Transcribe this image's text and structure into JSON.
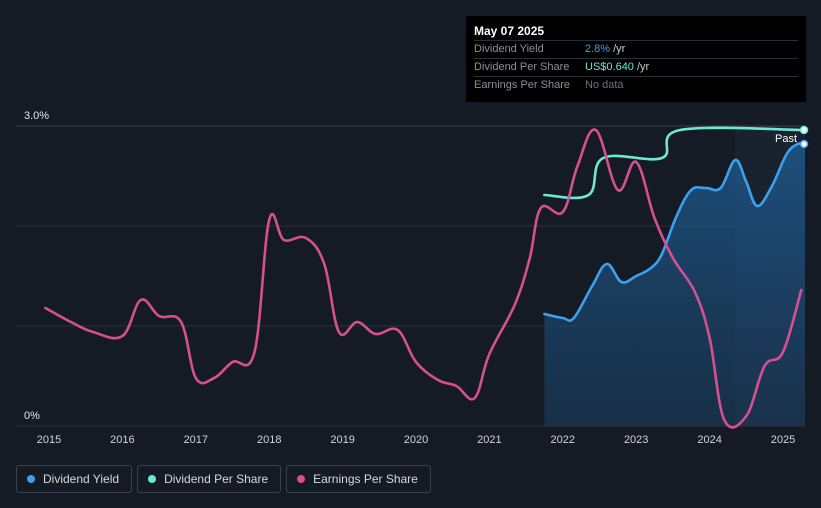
{
  "tooltip": {
    "date": "May 07 2025",
    "rows": [
      {
        "label": "Dividend Yield",
        "value": "2.8%",
        "unit": "/yr"
      },
      {
        "label": "Dividend Per Share",
        "value": "US$0.640",
        "unit": "/yr"
      },
      {
        "label": "Earnings Per Share",
        "value": "No data"
      }
    ]
  },
  "legend": [
    {
      "label": "Dividend Yield",
      "color": "#3ca0ee"
    },
    {
      "label": "Dividend Per Share",
      "color": "#6ee8d6"
    },
    {
      "label": "Earnings Per Share",
      "color": "#d6508f"
    }
  ],
  "chart_data": {
    "type": "line",
    "title": "",
    "xlabel": "",
    "ylabel": "",
    "y_ticks": [
      {
        "value": 3.0,
        "label": "3.0%"
      },
      {
        "value": 0,
        "label": "0%"
      }
    ],
    "ylim": [
      0,
      3.0
    ],
    "xlim": [
      2014.55,
      2025.3
    ],
    "x_ticks": [
      2015,
      2016,
      2017,
      2018,
      2019,
      2020,
      2021,
      2022,
      2023,
      2024,
      2025
    ],
    "x_tick_labels": [
      "2015",
      "2016",
      "2017",
      "2018",
      "2019",
      "2020",
      "2021",
      "2022",
      "2023",
      "2024",
      "2025"
    ],
    "past_label": "Past",
    "past_start": 2024.35,
    "grid": true,
    "series": [
      {
        "name": "Dividend Yield",
        "color": "#3ca0ee",
        "area": true,
        "points": [
          [
            2021.75,
            1.12
          ],
          [
            2022.0,
            1.08
          ],
          [
            2022.15,
            1.08
          ],
          [
            2022.4,
            1.4
          ],
          [
            2022.6,
            1.62
          ],
          [
            2022.8,
            1.44
          ],
          [
            2023.0,
            1.5
          ],
          [
            2023.2,
            1.58
          ],
          [
            2023.35,
            1.72
          ],
          [
            2023.55,
            2.1
          ],
          [
            2023.75,
            2.36
          ],
          [
            2023.95,
            2.38
          ],
          [
            2024.15,
            2.38
          ],
          [
            2024.35,
            2.66
          ],
          [
            2024.5,
            2.44
          ],
          [
            2024.65,
            2.2
          ],
          [
            2024.85,
            2.4
          ],
          [
            2025.05,
            2.72
          ],
          [
            2025.2,
            2.82
          ],
          [
            2025.3,
            2.82
          ]
        ]
      },
      {
        "name": "Dividend Per Share",
        "color": "#6ee8d6",
        "area": false,
        "points": [
          [
            2021.75,
            2.31
          ],
          [
            2022.35,
            2.31
          ],
          [
            2022.55,
            2.68
          ],
          [
            2023.35,
            2.68
          ],
          [
            2023.6,
            2.96
          ],
          [
            2025.3,
            2.96
          ]
        ]
      },
      {
        "name": "Earnings Per Share",
        "color": "#d6508f",
        "area": false,
        "points": [
          [
            2014.95,
            1.18
          ],
          [
            2015.3,
            1.04
          ],
          [
            2015.6,
            0.94
          ],
          [
            2016.0,
            0.9
          ],
          [
            2016.25,
            1.26
          ],
          [
            2016.5,
            1.1
          ],
          [
            2016.8,
            1.04
          ],
          [
            2017.0,
            0.48
          ],
          [
            2017.25,
            0.48
          ],
          [
            2017.5,
            0.64
          ],
          [
            2017.8,
            0.74
          ],
          [
            2018.0,
            2.06
          ],
          [
            2018.2,
            1.86
          ],
          [
            2018.5,
            1.88
          ],
          [
            2018.75,
            1.62
          ],
          [
            2018.95,
            0.94
          ],
          [
            2019.2,
            1.04
          ],
          [
            2019.45,
            0.92
          ],
          [
            2019.75,
            0.96
          ],
          [
            2020.0,
            0.64
          ],
          [
            2020.3,
            0.46
          ],
          [
            2020.55,
            0.4
          ],
          [
            2020.8,
            0.28
          ],
          [
            2021.0,
            0.72
          ],
          [
            2021.35,
            1.22
          ],
          [
            2021.55,
            1.68
          ],
          [
            2021.7,
            2.18
          ],
          [
            2022.0,
            2.14
          ],
          [
            2022.2,
            2.6
          ],
          [
            2022.45,
            2.96
          ],
          [
            2022.75,
            2.36
          ],
          [
            2023.0,
            2.64
          ],
          [
            2023.25,
            2.08
          ],
          [
            2023.5,
            1.68
          ],
          [
            2023.8,
            1.34
          ],
          [
            2024.0,
            0.88
          ],
          [
            2024.2,
            0.06
          ],
          [
            2024.5,
            0.1
          ],
          [
            2024.75,
            0.6
          ],
          [
            2025.0,
            0.74
          ],
          [
            2025.25,
            1.36
          ]
        ]
      }
    ]
  }
}
